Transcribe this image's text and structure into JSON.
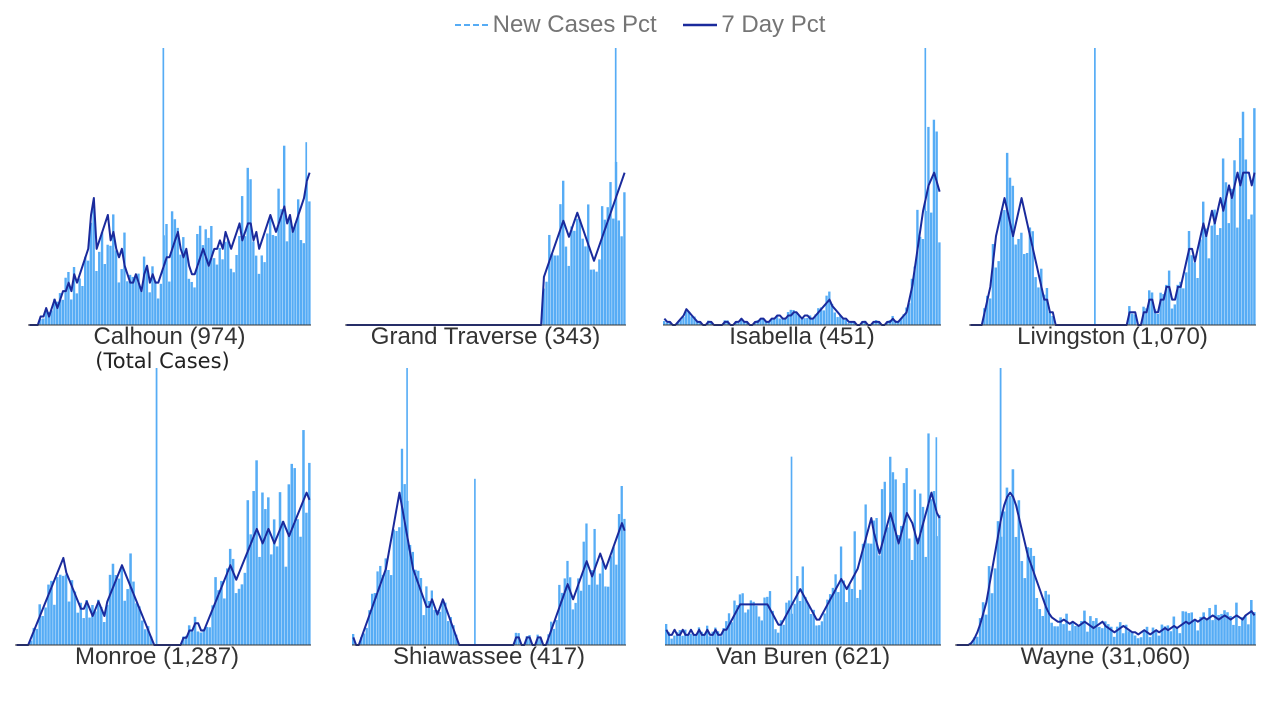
{
  "legend": {
    "new_cases_label": "New Cases Pct",
    "seven_day_label": "7 Day Pct"
  },
  "colors": {
    "bar": "#56acf5",
    "line": "#1a2a9c",
    "legend_text": "#757575",
    "title_text": "#333333"
  },
  "chart_data": [
    {
      "type": "bar",
      "title": "Calhoun (974)",
      "subtitle": "(Total Cases)",
      "spikes": [
        [
          48,
          1.0
        ],
        [
          99,
          0.66
        ]
      ],
      "values": [
        0,
        0,
        0,
        0,
        1,
        1,
        2,
        1,
        2,
        3,
        2,
        3,
        4,
        4,
        5,
        4,
        6,
        5,
        6,
        7,
        8,
        9,
        13,
        15,
        9,
        10,
        11,
        12,
        13,
        10,
        11,
        9,
        8,
        9,
        7,
        6,
        5,
        5,
        6,
        5,
        4,
        6,
        7,
        5,
        6,
        5,
        5,
        6,
        7,
        8,
        8,
        9,
        10,
        11,
        9,
        8,
        9,
        7,
        6,
        6,
        7,
        8,
        9,
        8,
        7,
        8,
        9,
        9,
        10,
        9,
        11,
        10,
        9,
        10,
        11,
        12,
        10,
        11,
        12,
        12,
        10,
        11,
        9,
        10,
        11,
        12,
        13,
        12,
        11,
        12,
        13,
        14,
        12,
        13,
        11,
        12,
        13,
        14,
        15,
        17,
        18
      ]
    },
    {
      "type": "bar",
      "title": "Grand Traverse (343)",
      "spikes": [
        [
          97,
          1.0
        ]
      ],
      "values": [
        0,
        0,
        0,
        0,
        0,
        0,
        0,
        0,
        0,
        0,
        0,
        0,
        0,
        0,
        0,
        0,
        0,
        0,
        0,
        0,
        0,
        0,
        0,
        0,
        0,
        0,
        0,
        0,
        0,
        0,
        0,
        0,
        0,
        0,
        0,
        0,
        0,
        0,
        0,
        0,
        0,
        0,
        0,
        0,
        0,
        0,
        0,
        0,
        0,
        0,
        0,
        0,
        0,
        0,
        0,
        0,
        0,
        0,
        0,
        0,
        0,
        0,
        0,
        0,
        0,
        0,
        0,
        0,
        0,
        0,
        0,
        12,
        14,
        16,
        18,
        20,
        22,
        24,
        26,
        24,
        22,
        24,
        26,
        28,
        26,
        24,
        22,
        20,
        18,
        16,
        18,
        20,
        22,
        24,
        26,
        28,
        30,
        32,
        34,
        36,
        38
      ]
    },
    {
      "type": "bar",
      "title": "Isabella (451)",
      "spikes": [
        [
          95,
          1.0
        ]
      ],
      "values": [
        2,
        1,
        1,
        0,
        0,
        1,
        2,
        3,
        5,
        4,
        3,
        2,
        1,
        1,
        0,
        0,
        1,
        1,
        0,
        0,
        0,
        0,
        1,
        1,
        0,
        0,
        1,
        1,
        2,
        1,
        1,
        0,
        0,
        1,
        1,
        2,
        2,
        1,
        1,
        2,
        2,
        3,
        3,
        2,
        2,
        3,
        3,
        4,
        4,
        3,
        2,
        3,
        3,
        2,
        2,
        3,
        4,
        5,
        6,
        7,
        8,
        6,
        5,
        4,
        3,
        2,
        2,
        1,
        1,
        1,
        0,
        0,
        1,
        1,
        0,
        0,
        1,
        1,
        1,
        0,
        0,
        1,
        1,
        2,
        1,
        1,
        2,
        3,
        4,
        8,
        12,
        18,
        24,
        30,
        36,
        40,
        44,
        46,
        48,
        45,
        42
      ]
    },
    {
      "type": "bar",
      "title": "Livingston (1,070)",
      "spikes": [
        [
          44,
          1.0
        ]
      ],
      "values": [
        0,
        0,
        0,
        0,
        0,
        1,
        2,
        3,
        5,
        7,
        8,
        9,
        10,
        9,
        8,
        7,
        8,
        9,
        10,
        9,
        8,
        7,
        6,
        5,
        4,
        3,
        2,
        2,
        1,
        1,
        0,
        0,
        0,
        0,
        0,
        0,
        0,
        0,
        0,
        0,
        0,
        0,
        0,
        0,
        0,
        0,
        0,
        0,
        0,
        0,
        0,
        0,
        0,
        0,
        0,
        0,
        1,
        1,
        1,
        0,
        0,
        1,
        1,
        2,
        2,
        1,
        1,
        2,
        2,
        3,
        3,
        2,
        2,
        3,
        3,
        4,
        5,
        6,
        6,
        5,
        6,
        7,
        8,
        7,
        8,
        9,
        8,
        9,
        10,
        9,
        10,
        11,
        10,
        11,
        12,
        11,
        12,
        12,
        12,
        11,
        12
      ]
    },
    {
      "type": "bar",
      "title": "Monroe (1,287)",
      "spikes": [
        [
          48,
          1.0
        ]
      ],
      "values": [
        0,
        0,
        0,
        0,
        0,
        1,
        2,
        3,
        4,
        5,
        6,
        7,
        8,
        9,
        10,
        11,
        12,
        10,
        9,
        8,
        7,
        6,
        5,
        5,
        6,
        5,
        4,
        5,
        6,
        5,
        4,
        6,
        7,
        8,
        9,
        10,
        11,
        10,
        9,
        8,
        7,
        6,
        5,
        4,
        3,
        2,
        1,
        0,
        0,
        0,
        0,
        0,
        0,
        0,
        0,
        0,
        0,
        1,
        1,
        2,
        2,
        3,
        3,
        2,
        2,
        3,
        4,
        5,
        6,
        7,
        8,
        9,
        10,
        11,
        10,
        9,
        10,
        11,
        12,
        13,
        14,
        15,
        16,
        15,
        14,
        15,
        16,
        15,
        14,
        15,
        16,
        17,
        16,
        15,
        16,
        17,
        18,
        19,
        20,
        21,
        20
      ]
    },
    {
      "type": "bar",
      "title": "Shiawassee (417)",
      "spikes": [
        [
          20,
          1.0
        ],
        [
          45,
          0.6
        ]
      ],
      "values": [
        1,
        0,
        0,
        1,
        2,
        3,
        4,
        5,
        6,
        7,
        8,
        9,
        10,
        12,
        14,
        16,
        18,
        20,
        18,
        16,
        14,
        12,
        10,
        9,
        8,
        7,
        6,
        5,
        5,
        6,
        5,
        4,
        5,
        6,
        5,
        4,
        3,
        2,
        1,
        0,
        0,
        0,
        0,
        0,
        0,
        0,
        0,
        0,
        0,
        0,
        0,
        0,
        0,
        0,
        0,
        0,
        0,
        0,
        0,
        0,
        1,
        1,
        0,
        0,
        1,
        1,
        0,
        0,
        1,
        1,
        0,
        0,
        1,
        2,
        3,
        4,
        5,
        6,
        7,
        8,
        7,
        6,
        7,
        8,
        9,
        10,
        11,
        10,
        9,
        10,
        11,
        12,
        11,
        10,
        11,
        12,
        13,
        14,
        15,
        16,
        15
      ]
    },
    {
      "type": "bar",
      "title": "Van Buren (621)",
      "spikes": [
        [
          46,
          0.68
        ],
        [
          99,
          0.75
        ]
      ],
      "values": [
        3,
        2,
        2,
        3,
        2,
        2,
        3,
        2,
        2,
        3,
        2,
        2,
        3,
        2,
        2,
        3,
        2,
        2,
        3,
        2,
        2,
        3,
        3,
        4,
        5,
        6,
        7,
        8,
        8,
        8,
        8,
        8,
        8,
        8,
        8,
        8,
        8,
        8,
        7,
        6,
        5,
        4,
        4,
        5,
        6,
        7,
        8,
        9,
        10,
        11,
        10,
        9,
        8,
        7,
        6,
        5,
        5,
        6,
        7,
        8,
        9,
        10,
        11,
        12,
        13,
        12,
        11,
        12,
        13,
        14,
        15,
        17,
        19,
        21,
        23,
        25,
        22,
        20,
        18,
        20,
        22,
        24,
        26,
        24,
        22,
        20,
        22,
        24,
        26,
        25,
        24,
        22,
        20,
        22,
        24,
        26,
        28,
        30,
        28,
        26,
        25
      ]
    },
    {
      "type": "bar",
      "title": "Wayne (31,060)",
      "spikes": [
        [
          15,
          1.0
        ]
      ],
      "values": [
        0,
        0,
        0,
        0,
        0,
        1,
        3,
        6,
        10,
        15,
        20,
        28,
        36,
        44,
        52,
        60,
        66,
        70,
        72,
        70,
        66,
        60,
        54,
        48,
        42,
        38,
        34,
        30,
        26,
        22,
        18,
        15,
        13,
        12,
        11,
        11,
        12,
        11,
        10,
        11,
        10,
        9,
        10,
        11,
        10,
        9,
        8,
        9,
        10,
        11,
        9,
        8,
        7,
        6,
        7,
        8,
        9,
        8,
        7,
        6,
        6,
        5,
        6,
        7,
        6,
        5,
        6,
        7,
        6,
        7,
        8,
        7,
        8,
        9,
        8,
        9,
        10,
        11,
        10,
        11,
        12,
        11,
        12,
        13,
        12,
        13,
        14,
        13,
        12,
        13,
        14,
        13,
        12,
        13,
        14,
        13,
        12,
        14,
        15,
        16,
        14
      ]
    }
  ]
}
